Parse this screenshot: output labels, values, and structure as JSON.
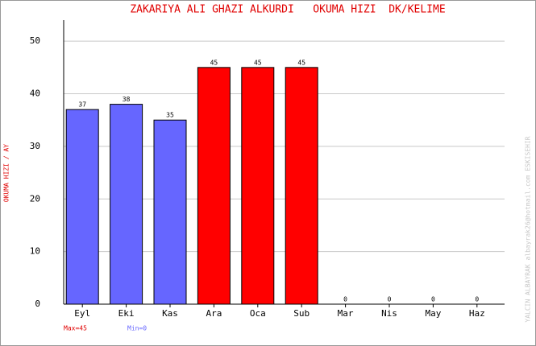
{
  "chart_data": {
    "type": "bar",
    "title": "ZAKARIYA ALI GHAZI ALKURDI   OKUMA HIZI  DK/KELIME",
    "y_label": "OKUMA HIZI / AY",
    "side_note": "YALCIN ALBAYRAK   albayrak26@hotmail.com   ESKISEHIR",
    "max_label": "Max=45",
    "min_label": "Min=0",
    "max_color": "#e00000",
    "min_color": "#6666ff",
    "categories": [
      "Eyl",
      "Eki",
      "Kas",
      "Ara",
      "Oca",
      "Sub",
      "Mar",
      "Nis",
      "May",
      "Haz"
    ],
    "values": [
      37,
      38,
      35,
      45,
      45,
      45,
      0,
      0,
      0,
      0
    ],
    "colors": [
      "#6666ff",
      "#6666ff",
      "#6666ff",
      "#ff0000",
      "#ff0000",
      "#ff0000",
      "#6666ff",
      "#6666ff",
      "#6666ff",
      "#6666ff"
    ],
    "ylim": [
      0,
      54
    ],
    "yticks": [
      0,
      10,
      20,
      30,
      40,
      50
    ],
    "grid": true
  }
}
